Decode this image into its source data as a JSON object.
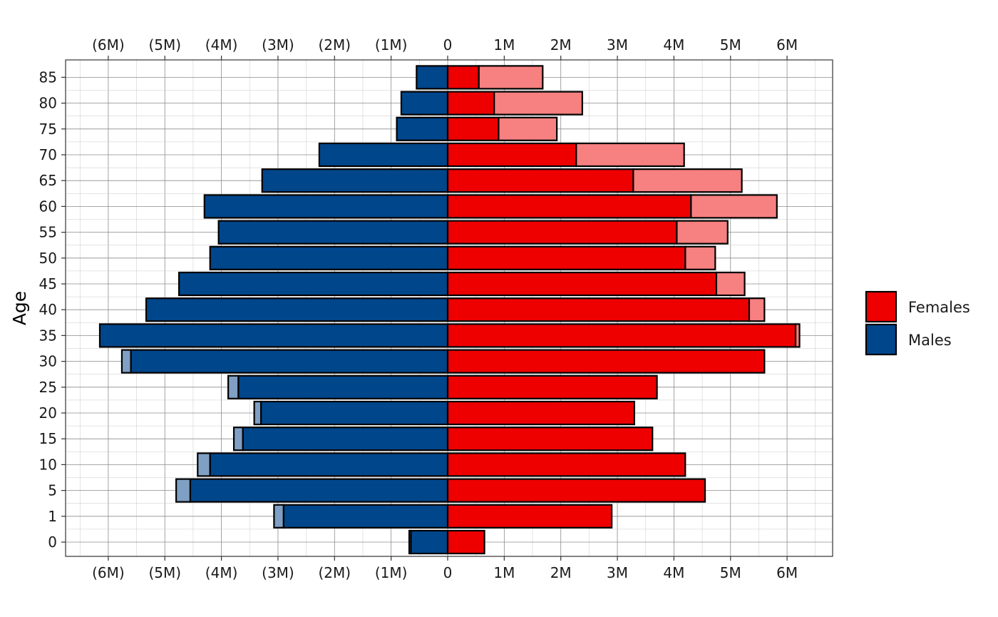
{
  "chart_data": {
    "type": "bar",
    "orientation": "horizontal",
    "ylabel": "Age",
    "age_groups": [
      "0",
      "1",
      "5",
      "10",
      "15",
      "20",
      "25",
      "30",
      "35",
      "40",
      "45",
      "50",
      "55",
      "60",
      "65",
      "70",
      "75",
      "80",
      "85"
    ],
    "x_ticks": {
      "values": [
        -6,
        -5,
        -4,
        -3,
        -2,
        -1,
        0,
        1,
        2,
        3,
        4,
        5,
        6
      ],
      "labels": [
        "(6M)",
        "(5M)",
        "(4M)",
        "(3M)",
        "(2M)",
        "(1M)",
        "0",
        "1M",
        "2M",
        "3M",
        "4M",
        "5M",
        "6M"
      ]
    },
    "xlim": [
      -6.8,
      6.8
    ],
    "units": "millions",
    "grid": true,
    "legend_position": "right",
    "legend": [
      {
        "name": "Females",
        "color": "#EE0000"
      },
      {
        "name": "Males",
        "color": "#00468B"
      }
    ],
    "colors": {
      "females": "#EE0000",
      "females_excess": "#F78080",
      "males": "#00468B",
      "males_excess": "#7F9FC4"
    },
    "series": [
      {
        "name": "Females",
        "values": [
          0.65,
          2.9,
          4.55,
          4.2,
          3.62,
          3.3,
          3.7,
          5.6,
          6.15,
          5.33,
          4.75,
          4.2,
          4.05,
          4.3,
          3.28,
          2.27,
          0.9,
          0.82,
          0.55
        ]
      },
      {
        "name": "Males",
        "values": [
          0.65,
          2.9,
          4.55,
          4.2,
          3.62,
          3.3,
          3.7,
          5.6,
          6.15,
          5.33,
          4.75,
          4.2,
          4.05,
          4.3,
          3.28,
          2.27,
          0.9,
          0.82,
          0.55
        ]
      }
    ],
    "totals": {
      "females": [
        0.65,
        2.9,
        4.55,
        4.2,
        3.62,
        3.3,
        3.7,
        5.6,
        6.22,
        5.6,
        5.25,
        4.73,
        4.95,
        5.82,
        5.2,
        4.18,
        1.93,
        2.38,
        1.68
      ],
      "males": [
        0.68,
        3.07,
        4.8,
        4.42,
        3.78,
        3.42,
        3.88,
        5.76,
        6.15,
        5.33,
        4.75,
        4.2,
        4.05,
        4.3,
        3.28,
        2.27,
        0.9,
        0.82,
        0.55
      ]
    }
  }
}
